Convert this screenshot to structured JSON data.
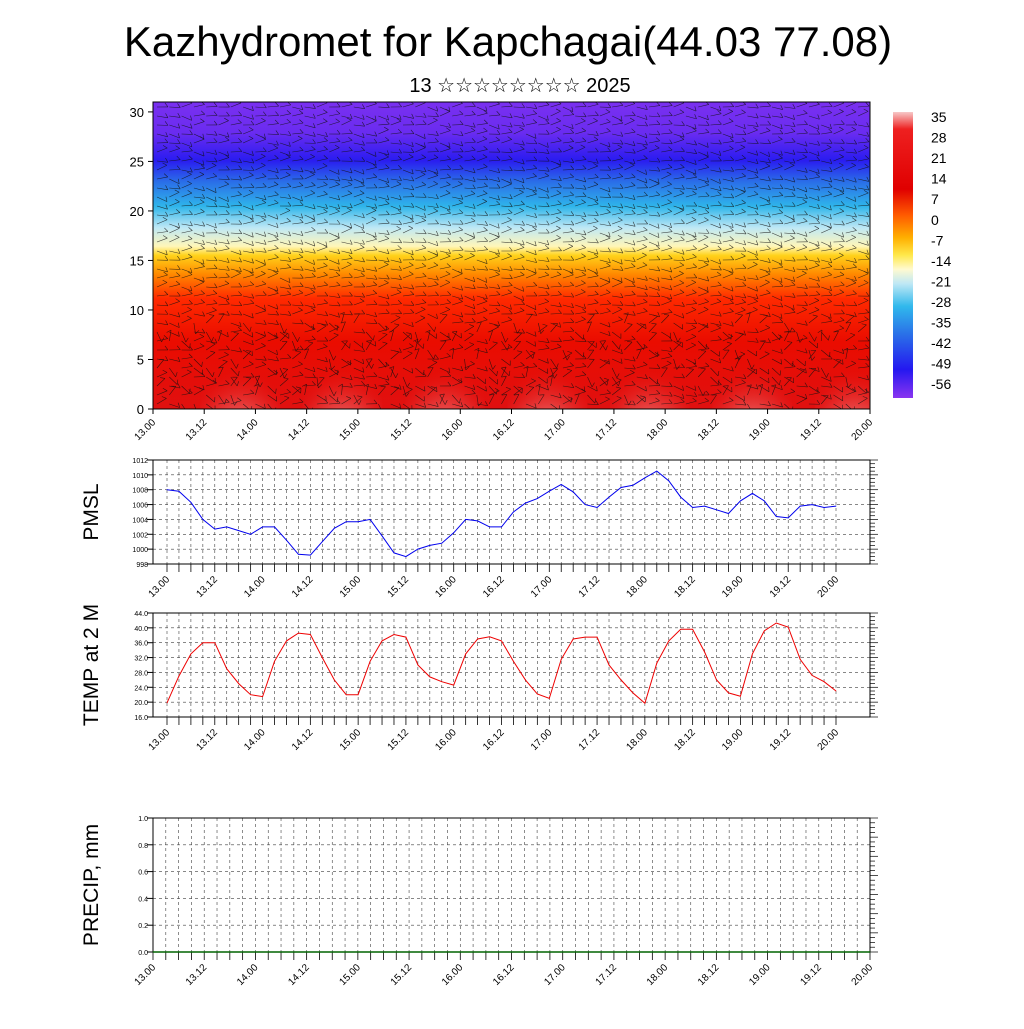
{
  "header": {
    "title": "Kazhydromet for Kapchagai(44.03 77.08)",
    "subtitle": "13 ☆☆☆☆☆☆☆☆ 2025"
  },
  "chart_data": [
    {
      "type": "heatmap",
      "name": "temperature-wind-cross-section",
      "xlabel": "",
      "ylabel": "",
      "x_tick_labels": [
        "13.00",
        "13.12",
        "14.00",
        "14.12",
        "15.00",
        "15.12",
        "16.00",
        "16.12",
        "17.00",
        "17.12",
        "18.00",
        "18.12",
        "19.00",
        "19.12",
        "20.00"
      ],
      "y_ticks": [
        0,
        5,
        10,
        15,
        20,
        25,
        30
      ],
      "ylim": [
        0,
        31
      ],
      "colorbar_labels": [
        "35",
        "28",
        "21",
        "14",
        "7",
        "0",
        "-7",
        "-14",
        "-21",
        "-28",
        "-35",
        "-42",
        "-49",
        "-56"
      ],
      "colormap_stops": [
        "#ffffff",
        "#f5a0a0",
        "#e81010",
        "#d80000",
        "#ff3b00",
        "#ff8a00",
        "#ffd21a",
        "#fff6b8",
        "#bfe8f5",
        "#2fb5ea",
        "#2a6ee8",
        "#2a1cf0",
        "#7a30f0"
      ],
      "grid": false,
      "barbs": true
    },
    {
      "type": "line",
      "name": "pmsl",
      "ylabel": "PMSL",
      "ylim": [
        998,
        1012
      ],
      "y_ticks": [
        998,
        1000,
        1002,
        1004,
        1006,
        1008,
        1010,
        1012
      ],
      "x_tick_labels": [
        "13.00",
        "13.12",
        "14.00",
        "14.12",
        "15.00",
        "15.12",
        "16.00",
        "16.12",
        "17.00",
        "17.12",
        "18.00",
        "18.12",
        "19.00",
        "19.12",
        "20.00"
      ],
      "color": "#0000ee",
      "grid": true,
      "series": [
        {
          "values": [
            1008,
            1007.8,
            1006.3,
            1004,
            1002.7,
            1003,
            1002.5,
            1002,
            1003,
            1003,
            1001.2,
            999.3,
            999.2,
            1001,
            1002.8,
            1003.7,
            1003.7,
            1004,
            1001.8,
            999.5,
            999,
            1000,
            1000.5,
            1000.8,
            1002.2,
            1004,
            1003.8,
            1003,
            1003,
            1005,
            1006.2,
            1006.8,
            1007.8,
            1008.7,
            1007.7,
            1006,
            1005.6,
            1007,
            1008.3,
            1008.6,
            1009.6,
            1010.5,
            1009.2,
            1007,
            1005.6,
            1005.8,
            1005.3,
            1004.8,
            1006.5,
            1007.5,
            1006.5,
            1004.4,
            1004.2,
            1005.8,
            1006,
            1005.6,
            1005.8
          ]
        }
      ]
    },
    {
      "type": "line",
      "name": "temp-2m",
      "ylabel": "TEMP at 2 M",
      "ylim": [
        16,
        44
      ],
      "y_ticks": [
        16,
        20,
        24,
        28,
        32,
        36,
        40,
        44
      ],
      "y_tick_labels": [
        "16.0",
        "20.0",
        "24.0",
        "28.0",
        "32.0",
        "36.0",
        "40.0",
        "44.0"
      ],
      "x_tick_labels": [
        "13.00",
        "13.12",
        "14.00",
        "14.12",
        "15.00",
        "15.12",
        "16.00",
        "16.12",
        "17.00",
        "17.12",
        "18.00",
        "18.12",
        "19.00",
        "19.12",
        "20.00"
      ],
      "color": "#ee0000",
      "grid": true,
      "series": [
        {
          "values": [
            19.8,
            27,
            33,
            36,
            36,
            29,
            25,
            22,
            21.5,
            31,
            36.5,
            38.6,
            38.2,
            32,
            26,
            22,
            22,
            31,
            36.5,
            38.2,
            37.5,
            30,
            26.8,
            25.5,
            24.6,
            33,
            37,
            37.6,
            36.5,
            31,
            26,
            22.2,
            21,
            31.5,
            37,
            37.5,
            37.5,
            30,
            26,
            22.5,
            19.7,
            30.5,
            36.5,
            39.6,
            39.6,
            33.5,
            26,
            22.5,
            21.6,
            33,
            39.2,
            41.3,
            40.2,
            31.5,
            27.2,
            25.5,
            23
          ]
        }
      ]
    },
    {
      "type": "line",
      "name": "precip",
      "ylabel": "PRECIP, mm",
      "ylim": [
        0,
        1
      ],
      "y_ticks": [
        0,
        0.2,
        0.4,
        0.6,
        0.8,
        1.0
      ],
      "y_tick_labels": [
        "0.0",
        "0.2",
        "0.4",
        "0.6",
        "0.8",
        "1.0"
      ],
      "x_tick_labels": [
        "13.00",
        "13.12",
        "14.00",
        "14.12",
        "15.00",
        "15.12",
        "16.00",
        "16.12",
        "17.00",
        "17.12",
        "18.00",
        "18.12",
        "19.00",
        "19.12",
        "20.00"
      ],
      "color": "#006400",
      "grid": true,
      "series": [
        {
          "values": [
            0,
            0,
            0,
            0,
            0,
            0,
            0,
            0,
            0,
            0,
            0,
            0,
            0,
            0,
            0,
            0,
            0,
            0,
            0,
            0,
            0,
            0,
            0,
            0,
            0,
            0,
            0,
            0,
            0,
            0,
            0,
            0,
            0,
            0,
            0,
            0,
            0,
            0,
            0,
            0,
            0,
            0,
            0,
            0,
            0,
            0,
            0,
            0,
            0,
            0,
            0,
            0,
            0,
            0,
            0,
            0,
            0
          ]
        }
      ]
    }
  ]
}
